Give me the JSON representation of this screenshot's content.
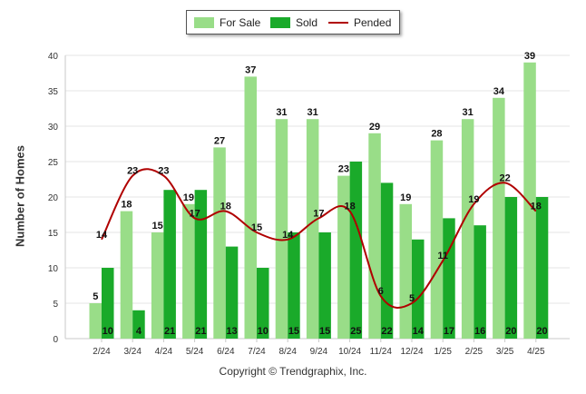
{
  "chart_data": {
    "type": "bar",
    "categories": [
      "2/24",
      "3/24",
      "4/24",
      "5/24",
      "6/24",
      "7/24",
      "8/24",
      "9/24",
      "10/24",
      "11/24",
      "12/24",
      "1/25",
      "2/25",
      "3/25",
      "4/25"
    ],
    "series": [
      {
        "name": "For Sale",
        "type": "bar",
        "color": "#99dd88",
        "values": [
          5,
          18,
          15,
          19,
          27,
          37,
          31,
          31,
          23,
          29,
          19,
          28,
          31,
          34,
          39
        ]
      },
      {
        "name": "Sold",
        "type": "bar",
        "color": "#1aaa2a",
        "values": [
          10,
          4,
          21,
          21,
          13,
          10,
          15,
          15,
          25,
          22,
          14,
          17,
          16,
          20,
          20
        ]
      },
      {
        "name": "Pended",
        "type": "line",
        "color": "#b00000",
        "values": [
          14,
          23,
          23,
          17,
          18,
          15,
          14,
          17,
          18,
          6,
          5,
          11,
          19,
          22,
          18
        ]
      }
    ],
    "ylabel": "Number of Homes",
    "ylim": [
      0,
      40
    ],
    "yticks": [
      0,
      5,
      10,
      15,
      20,
      25,
      30,
      35,
      40
    ],
    "legend_position": "top-center",
    "grid": true
  },
  "footer": {
    "copyright": "Copyright © Trendgraphix, Inc."
  }
}
